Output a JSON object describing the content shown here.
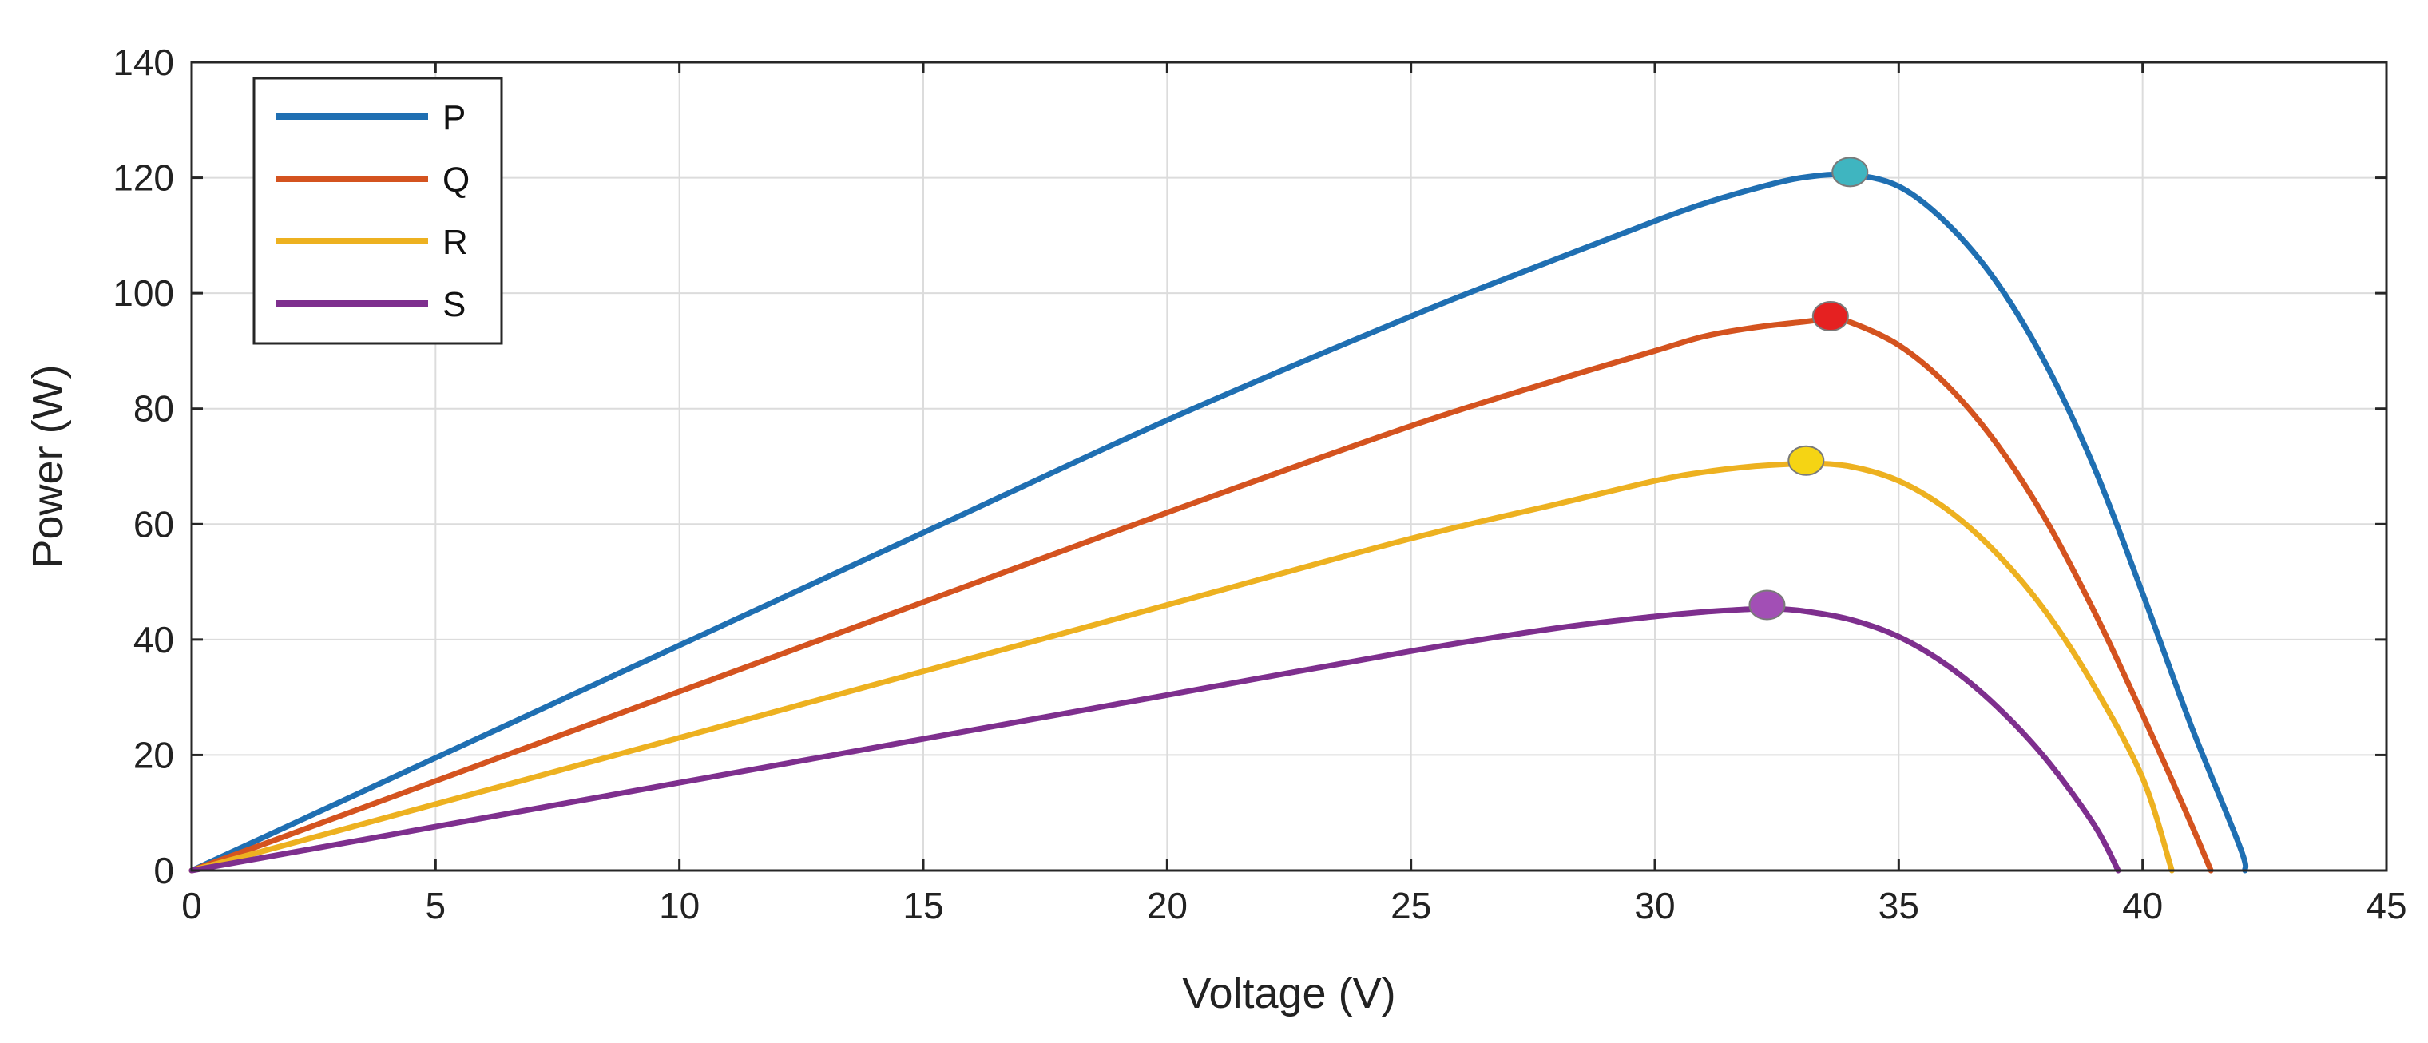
{
  "chart_data": {
    "type": "line",
    "title": "",
    "xlabel": "Voltage (V)",
    "ylabel": "Power (W)",
    "xlim": [
      0,
      45
    ],
    "ylim": [
      0,
      140
    ],
    "xticks": [
      0,
      5,
      10,
      15,
      20,
      25,
      30,
      35,
      40,
      45
    ],
    "yticks": [
      0,
      20,
      40,
      60,
      80,
      100,
      120,
      140
    ],
    "grid": true,
    "legend_position": "top-left",
    "series": [
      {
        "name": "P",
        "color": "#1f6fb2",
        "x": [
          0,
          5,
          10,
          15,
          20,
          25,
          28,
          30,
          31,
          32,
          33,
          34,
          35,
          36,
          37,
          38,
          39,
          40,
          41,
          42,
          42.1
        ],
        "y": [
          0,
          19.5,
          39,
          58.5,
          78,
          96,
          106,
          112.5,
          115.5,
          118,
          120,
          120.5,
          118.5,
          112,
          102,
          88,
          70,
          48,
          25,
          4,
          0
        ],
        "mpp": {
          "x": 34,
          "y": 121,
          "color": "#3fb5c0"
        }
      },
      {
        "name": "Q",
        "color": "#d4531f",
        "x": [
          0,
          5,
          10,
          15,
          20,
          25,
          28,
          30,
          31,
          32,
          33,
          33.6,
          34,
          35,
          36,
          37,
          38,
          39,
          40,
          41,
          41.4
        ],
        "y": [
          0,
          15.5,
          31,
          46.5,
          62,
          77,
          85,
          90,
          92.5,
          94,
          95,
          95.5,
          95,
          91,
          84,
          74,
          61,
          45,
          27,
          8,
          0
        ],
        "mpp": {
          "x": 33.6,
          "y": 96,
          "color": "#e52121"
        }
      },
      {
        "name": "R",
        "color": "#edb120",
        "x": [
          0,
          5,
          10,
          15,
          20,
          25,
          28,
          30,
          31,
          32,
          33,
          33.1,
          34,
          35,
          36,
          37,
          38,
          39,
          40,
          40.6
        ],
        "y": [
          0,
          11.5,
          23,
          34.5,
          46,
          57.5,
          63.5,
          67.5,
          69,
          70,
          70.5,
          70.6,
          70,
          67.5,
          62.5,
          55,
          45,
          32,
          16,
          0
        ],
        "mpp": {
          "x": 33.1,
          "y": 71,
          "color": "#f5d414"
        }
      },
      {
        "name": "S",
        "color": "#7e2f8e",
        "x": [
          0,
          5,
          10,
          15,
          20,
          25,
          28,
          30,
          31,
          32,
          32.3,
          33,
          34,
          35,
          36,
          37,
          38,
          39,
          39.5
        ],
        "y": [
          0,
          7.6,
          15.2,
          22.8,
          30.4,
          38,
          42,
          44,
          44.8,
          45.3,
          45.4,
          45,
          43.5,
          40.5,
          35.5,
          28.5,
          19.5,
          8,
          0
        ],
        "mpp": {
          "x": 32.3,
          "y": 46,
          "color": "#a24fb5"
        }
      }
    ]
  }
}
